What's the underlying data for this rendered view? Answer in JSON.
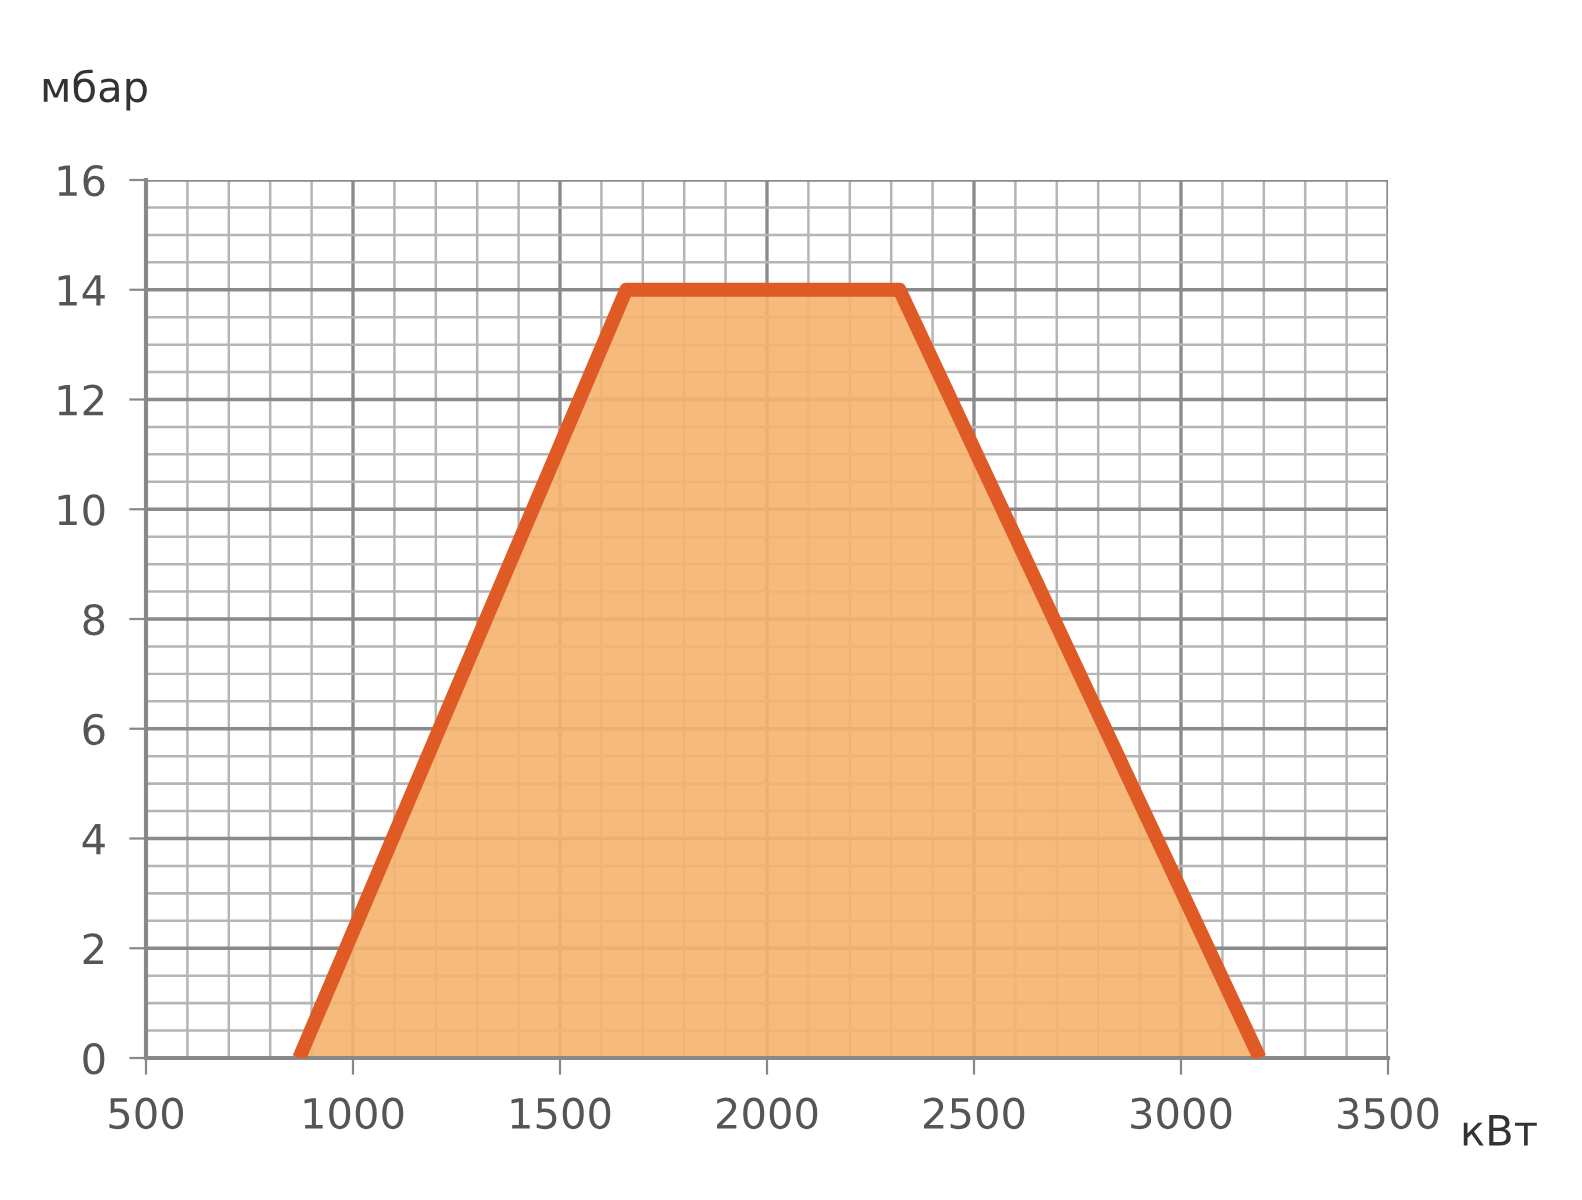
{
  "chart_data": {
    "type": "area",
    "xlabel": "кВт",
    "ylabel": "мбар",
    "series": [
      {
        "color": "#e05a25",
        "x": [
          870,
          1660,
          2320,
          3190
        ],
        "values": [
          0,
          14,
          14,
          0
        ]
      }
    ],
    "xlim": [
      500,
      3500
    ],
    "ylim": [
      0,
      16
    ],
    "xticks": [
      500,
      1000,
      1500,
      2000,
      2500,
      3000,
      3500,
      {
        "value": 600,
        "label": null
      },
      {
        "value": 700,
        "label": null
      },
      {
        "value": 800,
        "label": null
      },
      {
        "value": 900,
        "label": null
      },
      {
        "value": 1100,
        "label": null
      },
      {
        "value": 1200,
        "label": null
      },
      {
        "value": 1300,
        "label": null
      },
      {
        "value": 1400,
        "label": null
      },
      {
        "value": 1600,
        "label": null
      },
      {
        "value": 1700,
        "label": null
      },
      {
        "value": 1800,
        "label": null
      },
      {
        "value": 1900,
        "label": null
      },
      {
        "value": 2100,
        "label": null
      },
      {
        "value": 2200,
        "label": null
      },
      {
        "value": 2300,
        "label": null
      },
      {
        "value": 2400,
        "label": null
      },
      {
        "value": 2600,
        "label": null
      },
      {
        "value": 2700,
        "label": null
      },
      {
        "value": 2800,
        "label": null
      },
      {
        "value": 2900,
        "label": null
      },
      {
        "value": 3100,
        "label": null
      },
      {
        "value": 3200,
        "label": null
      },
      {
        "value": 3300,
        "label": null
      },
      {
        "value": 3400,
        "label": null
      }
    ],
    "yticks": [
      0,
      2,
      4,
      6,
      8,
      10,
      12,
      14,
      16,
      {
        "value": 0.5,
        "label": null
      },
      {
        "value": 1,
        "label": null
      },
      {
        "value": 1.5,
        "label": null
      },
      {
        "value": 2.5,
        "label": null
      },
      {
        "value": 3,
        "label": null
      },
      {
        "value": 3.5,
        "label": null
      },
      {
        "value": 4.5,
        "label": null
      },
      {
        "value": 5,
        "label": null
      },
      {
        "value": 5.5,
        "label": null
      },
      {
        "value": 6.5,
        "label": null
      },
      {
        "value": 7,
        "label": null
      },
      {
        "value": 7.5,
        "label": null
      },
      {
        "value": 8.5,
        "label": null
      },
      {
        "value": 9,
        "label": null
      },
      {
        "value": 9.5,
        "label": null
      },
      {
        "value": 10.5,
        "label": null
      },
      {
        "value": 11,
        "label": null
      },
      {
        "value": 11.5,
        "label": null
      },
      {
        "value": 12.5,
        "label": null
      },
      {
        "value": 13,
        "label": null
      },
      {
        "value": 13.5,
        "label": null
      },
      {
        "value": 14.5,
        "label": null
      },
      {
        "value": 15,
        "label": null
      },
      {
        "value": 15.5,
        "label": null
      }
    ],
    "grid": true,
    "line_style": "solid"
  }
}
